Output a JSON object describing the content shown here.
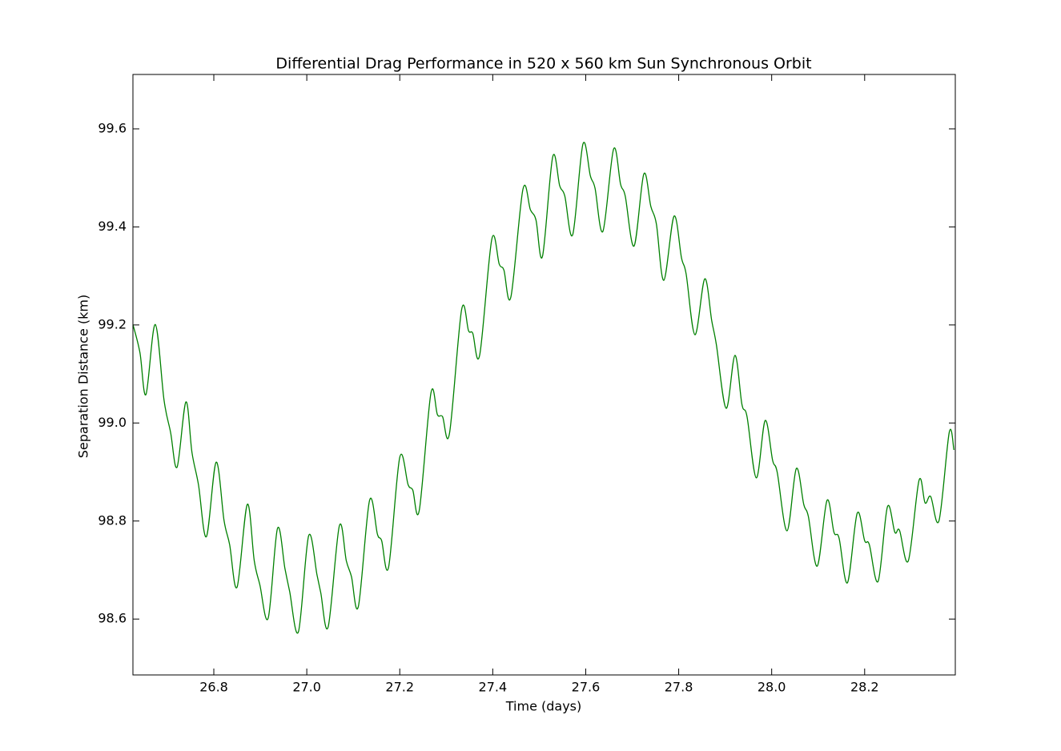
{
  "chart_data": {
    "type": "line",
    "title": "Differential Drag Performance in 520 x 560 km Sun Synchronous Orbit",
    "x_label": "Time (days)",
    "y_label": "Separation Distance (km)",
    "xlim": [
      26.626,
      28.395
    ],
    "ylim": [
      98.486,
      99.711
    ],
    "xticks": [
      26.8,
      {
        "value": 27,
        "label": "27.0"
      },
      27.2,
      27.4,
      27.6,
      27.8,
      {
        "value": 28,
        "label": "28.0"
      },
      28.2
    ],
    "yticks": [
      98.6,
      98.8,
      {
        "value": 99,
        "label": "99.0"
      },
      99.2,
      99.4,
      99.6
    ],
    "grid": false,
    "x": [
      26.626,
      26.641,
      26.654,
      26.674,
      26.693,
      26.707,
      26.721,
      26.74,
      26.753,
      26.767,
      26.784,
      26.805,
      26.822,
      26.834,
      26.85,
      26.872,
      26.887,
      26.899,
      26.917,
      26.937,
      26.953,
      26.963,
      26.982,
      27.004,
      27.022,
      27.03,
      27.046,
      27.07,
      27.085,
      27.096,
      27.111,
      27.135,
      27.152,
      27.161,
      27.176,
      27.2,
      27.218,
      27.228,
      27.242,
      27.267,
      27.281,
      27.292,
      27.307,
      27.333,
      27.348,
      27.357,
      27.372,
      27.398,
      27.414,
      27.424,
      27.439,
      27.465,
      27.481,
      27.493,
      27.507,
      27.529,
      27.544,
      27.555,
      27.572,
      27.594,
      27.61,
      27.62,
      27.637,
      27.66,
      27.675,
      27.685,
      27.704,
      27.725,
      27.74,
      27.752,
      27.768,
      27.79,
      27.806,
      27.816,
      27.835,
      27.856,
      27.871,
      27.881,
      27.902,
      27.921,
      27.936,
      27.947,
      27.967,
      27.986,
      28.002,
      28.012,
      28.033,
      28.053,
      28.069,
      28.079,
      28.098,
      28.119,
      28.134,
      28.145,
      28.163,
      28.184,
      28.2,
      28.21,
      28.229,
      28.249,
      28.265,
      28.275,
      28.294,
      28.317,
      28.33,
      28.342,
      28.36,
      28.382,
      28.392
    ],
    "series": [
      {
        "name": "Separation",
        "color": "#008000",
        "values": [
          99.201,
          99.144,
          99.058,
          99.201,
          99.046,
          98.981,
          98.91,
          99.043,
          98.94,
          98.874,
          98.768,
          98.92,
          98.801,
          98.752,
          98.665,
          98.834,
          98.719,
          98.67,
          98.602,
          98.785,
          98.703,
          98.657,
          98.574,
          98.77,
          98.69,
          98.654,
          98.584,
          98.79,
          98.719,
          98.687,
          98.626,
          98.842,
          98.773,
          98.76,
          98.706,
          98.93,
          98.874,
          98.863,
          98.822,
          99.061,
          99.017,
          99.013,
          98.979,
          99.231,
          99.188,
          99.183,
          99.139,
          99.375,
          99.324,
          99.312,
          99.257,
          99.477,
          99.435,
          99.414,
          99.34,
          99.543,
          99.484,
          99.463,
          99.384,
          99.569,
          99.504,
          99.479,
          99.391,
          99.559,
          99.487,
          99.463,
          99.361,
          99.508,
          99.442,
          99.406,
          99.291,
          99.422,
          99.337,
          99.304,
          99.18,
          99.294,
          99.209,
          99.16,
          99.03,
          99.138,
          99.038,
          99.013,
          98.888,
          99.005,
          98.924,
          98.899,
          98.78,
          98.907,
          98.834,
          98.809,
          98.708,
          98.842,
          98.777,
          98.765,
          98.674,
          98.816,
          98.76,
          98.752,
          98.677,
          98.829,
          98.777,
          98.781,
          98.719,
          98.883,
          98.837,
          98.85,
          98.801,
          98.981,
          98.945
        ]
      }
    ]
  }
}
